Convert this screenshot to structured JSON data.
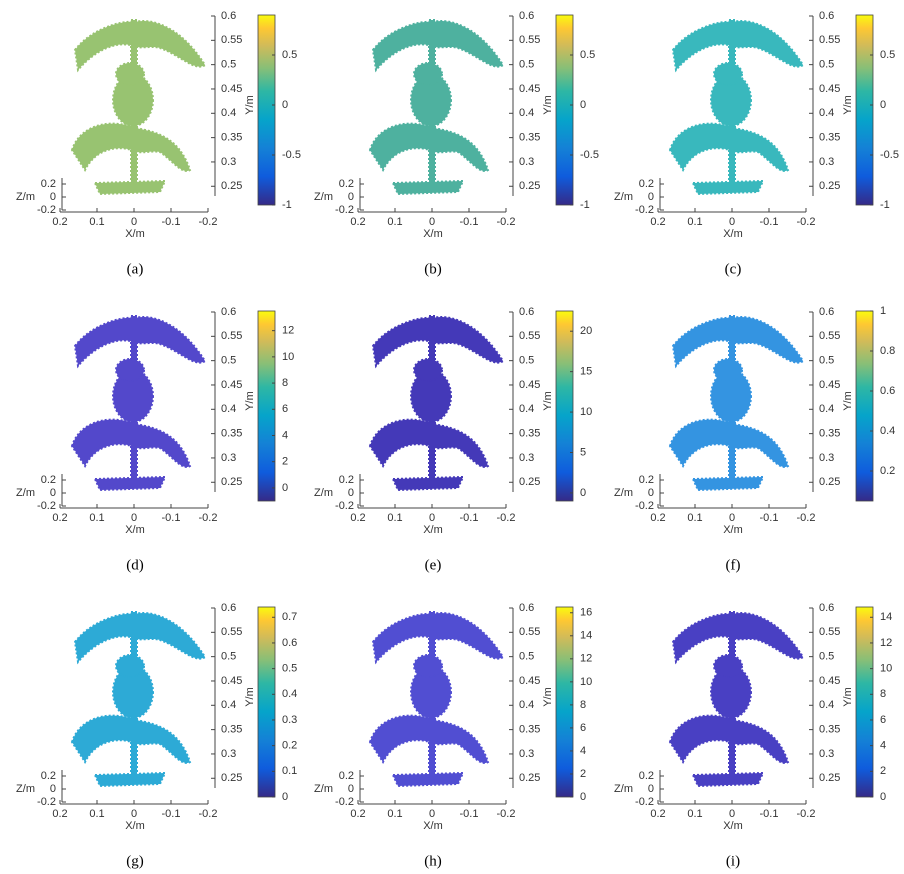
{
  "chart_data": [
    {
      "type": "scatter",
      "label": "(a)",
      "xlabel": "X/m",
      "ylabel": "Y/m",
      "zlabel": "Z/m",
      "xlim": [
        0.2,
        -0.2
      ],
      "xticks": [
        0.2,
        0.1,
        0,
        -0.1,
        -0.2
      ],
      "ylim": [
        0.23,
        0.6
      ],
      "yticks": [
        0.6,
        0.55,
        0.5,
        0.45,
        0.4,
        0.35,
        0.3,
        0.25
      ],
      "zlim": [
        -0.2,
        0.2
      ],
      "zticks": [
        0.2,
        0,
        -0.2
      ],
      "clim": [
        -1,
        0.9
      ],
      "cticks": [
        0.5,
        0,
        -0.5,
        -1
      ],
      "color": "#93c06a"
    },
    {
      "type": "scatter",
      "label": "(b)",
      "xlabel": "X/m",
      "ylabel": "Y/m",
      "zlabel": "Z/m",
      "xlim": [
        0.2,
        -0.2
      ],
      "xticks": [
        0.2,
        0.1,
        0,
        -0.1,
        -0.2
      ],
      "ylim": [
        0.23,
        0.6
      ],
      "yticks": [
        0.6,
        0.55,
        0.5,
        0.45,
        0.4,
        0.35,
        0.3,
        0.25
      ],
      "zlim": [
        -0.2,
        0.2
      ],
      "zticks": [
        0.2,
        0,
        -0.2
      ],
      "clim": [
        -1,
        0.9
      ],
      "cticks": [
        0.5,
        0,
        -0.5,
        -1
      ],
      "color": "#45ad9a"
    },
    {
      "type": "scatter",
      "label": "(c)",
      "xlabel": "X/m",
      "ylabel": "Y/m",
      "zlabel": "Z/m",
      "xlim": [
        0.2,
        -0.2
      ],
      "xticks": [
        0.2,
        0.1,
        0,
        -0.1,
        -0.2
      ],
      "ylim": [
        0.23,
        0.6
      ],
      "yticks": [
        0.6,
        0.55,
        0.5,
        0.45,
        0.4,
        0.35,
        0.3,
        0.25
      ],
      "zlim": [
        -0.2,
        0.2
      ],
      "zticks": [
        0.2,
        0,
        -0.2
      ],
      "clim": [
        -1,
        0.9
      ],
      "cticks": [
        0.5,
        0,
        -0.5,
        -1
      ],
      "color": "#2fb5ba"
    },
    {
      "type": "scatter",
      "label": "(d)",
      "xlabel": "X/m",
      "ylabel": "Y/m",
      "zlabel": "Z/m",
      "xlim": [
        0.2,
        -0.2
      ],
      "xticks": [
        0.2,
        0.1,
        0,
        -0.1,
        -0.2
      ],
      "ylim": [
        0.23,
        0.6
      ],
      "yticks": [
        0.6,
        0.55,
        0.5,
        0.45,
        0.4,
        0.35,
        0.3,
        0.25
      ],
      "zlim": [
        -0.2,
        0.2
      ],
      "zticks": [
        0.2,
        0,
        -0.2
      ],
      "clim": [
        -1,
        13.5
      ],
      "cticks": [
        12,
        10,
        8,
        6,
        4,
        2,
        0
      ],
      "color": "#4a3fc9"
    },
    {
      "type": "scatter",
      "label": "(e)",
      "xlabel": "X/m",
      "ylabel": "Y/m",
      "zlabel": "Z/m",
      "xlim": [
        0.2,
        -0.2
      ],
      "xticks": [
        0.2,
        0.1,
        0,
        -0.1,
        -0.2
      ],
      "ylim": [
        0.23,
        0.6
      ],
      "yticks": [
        0.6,
        0.55,
        0.5,
        0.45,
        0.4,
        0.35,
        0.3,
        0.25
      ],
      "zlim": [
        -0.2,
        0.2
      ],
      "zticks": [
        0.2,
        0,
        -0.2
      ],
      "clim": [
        -1,
        22.5
      ],
      "cticks": [
        20,
        15,
        10,
        5,
        0
      ],
      "color": "#3b2fb5"
    },
    {
      "type": "scatter",
      "label": "(f)",
      "xlabel": "X/m",
      "ylabel": "Y/m",
      "zlabel": "Z/m",
      "xlim": [
        0.2,
        -0.2
      ],
      "xticks": [
        0.2,
        0.1,
        0,
        -0.1,
        -0.2
      ],
      "ylim": [
        0.23,
        0.6
      ],
      "yticks": [
        0.6,
        0.55,
        0.5,
        0.45,
        0.4,
        0.35,
        0.3,
        0.25
      ],
      "zlim": [
        -0.2,
        0.2
      ],
      "zticks": [
        0.2,
        0,
        -0.2
      ],
      "clim": [
        0.05,
        1
      ],
      "cticks": [
        1,
        0.8,
        0.6,
        0.4,
        0.2
      ],
      "color": "#2a8fe0"
    },
    {
      "type": "scatter",
      "label": "(g)",
      "xlabel": "X/m",
      "ylabel": "Y/m",
      "zlabel": "Z/m",
      "xlim": [
        0.2,
        -0.2
      ],
      "xticks": [
        0.2,
        0.1,
        0,
        -0.1,
        -0.2
      ],
      "ylim": [
        0.23,
        0.6
      ],
      "yticks": [
        0.6,
        0.55,
        0.5,
        0.45,
        0.4,
        0.35,
        0.3,
        0.25
      ],
      "zlim": [
        -0.2,
        0.2
      ],
      "zticks": [
        0.2,
        0,
        -0.2
      ],
      "clim": [
        0,
        0.74
      ],
      "cticks": [
        0.7,
        0.6,
        0.5,
        0.4,
        0.3,
        0.2,
        0.1,
        0
      ],
      "color": "#22a6d4"
    },
    {
      "type": "scatter",
      "label": "(h)",
      "xlabel": "X/m",
      "ylabel": "Y/m",
      "zlabel": "Z/m",
      "xlim": [
        0.2,
        -0.2
      ],
      "xticks": [
        0.2,
        0.1,
        0,
        -0.1,
        -0.2
      ],
      "ylim": [
        0.23,
        0.6
      ],
      "yticks": [
        0.6,
        0.55,
        0.5,
        0.45,
        0.4,
        0.35,
        0.3,
        0.25
      ],
      "zlim": [
        -0.2,
        0.2
      ],
      "zticks": [
        0.2,
        0,
        -0.2
      ],
      "clim": [
        0,
        16.5
      ],
      "cticks": [
        16,
        14,
        12,
        10,
        8,
        6,
        4,
        2,
        0
      ],
      "color": "#4845d0"
    },
    {
      "type": "scatter",
      "label": "(i)",
      "xlabel": "X/m",
      "ylabel": "Y/m",
      "zlabel": "Z/m",
      "xlim": [
        0.2,
        -0.2
      ],
      "xticks": [
        0.2,
        0.1,
        0,
        -0.1,
        -0.2
      ],
      "ylim": [
        0.23,
        0.6
      ],
      "yticks": [
        0.6,
        0.55,
        0.5,
        0.45,
        0.4,
        0.35,
        0.3,
        0.25
      ],
      "zlim": [
        -0.2,
        0.2
      ],
      "zticks": [
        0.2,
        0,
        -0.2
      ],
      "clim": [
        0,
        14.8
      ],
      "cticks": [
        14,
        12,
        10,
        8,
        6,
        4,
        2,
        0
      ],
      "color": "#4036c0"
    }
  ]
}
